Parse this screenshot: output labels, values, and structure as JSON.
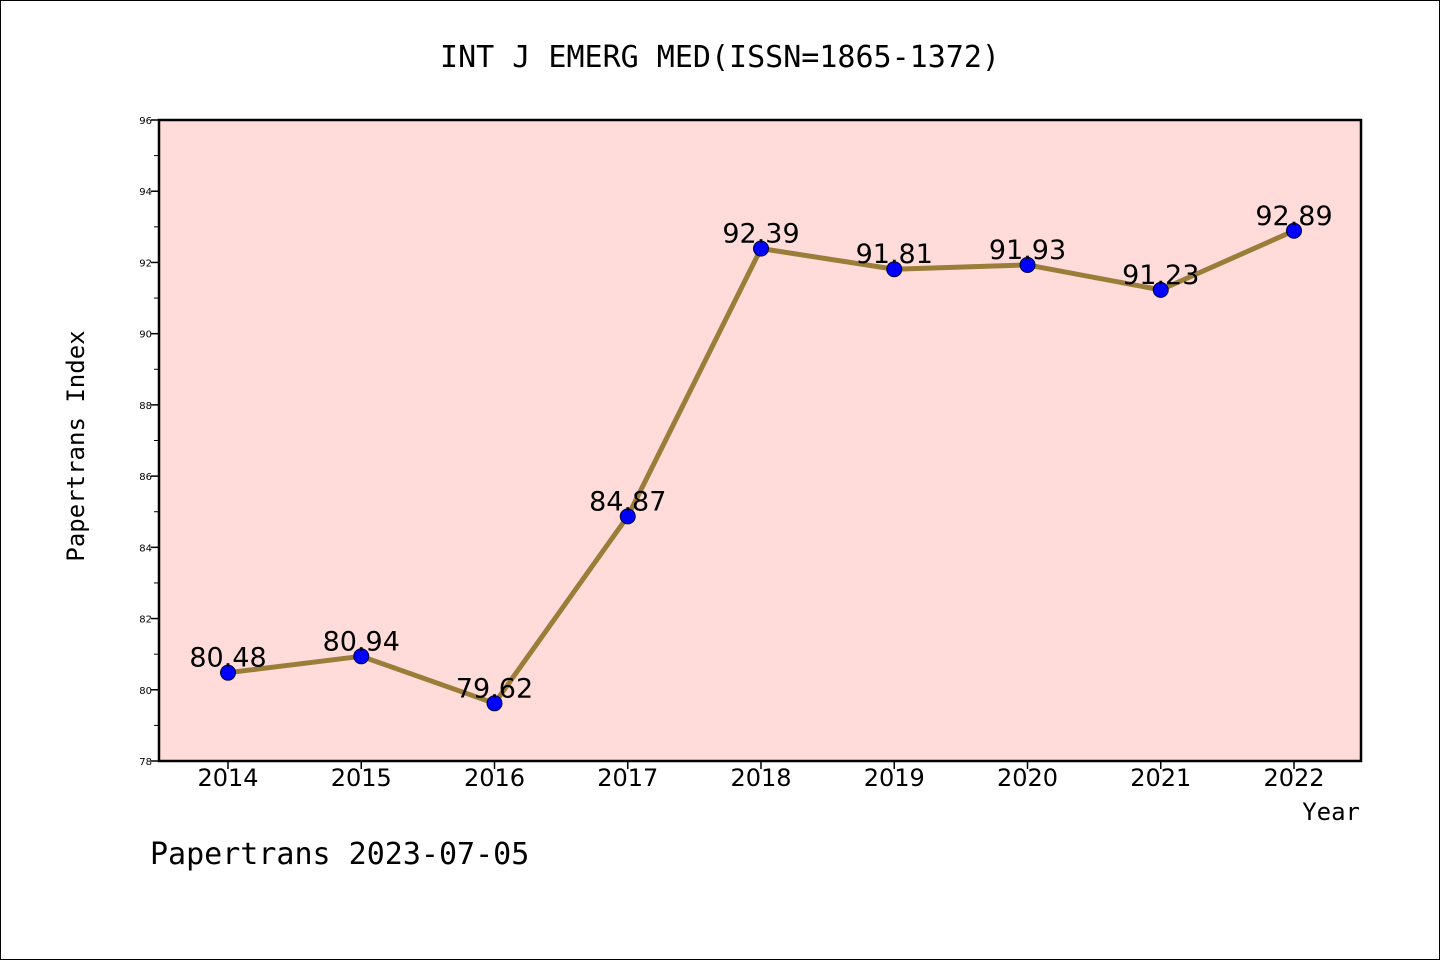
{
  "chart_data": {
    "type": "line",
    "title": "INT J EMERG MED(ISSN=1865-1372)",
    "xlabel": "Year",
    "ylabel": "Papertrans Index",
    "categories": [
      "2014",
      "2015",
      "2016",
      "2017",
      "2018",
      "2019",
      "2020",
      "2021",
      "2022"
    ],
    "values": [
      80.48,
      80.94,
      79.62,
      84.87,
      92.39,
      91.81,
      91.93,
      91.23,
      92.89
    ],
    "data_labels": [
      "80.48",
      "80.94",
      "79.62",
      "84.87",
      "92.39",
      "91.81",
      "91.93",
      "91.23",
      "92.89"
    ],
    "ylim": [
      78,
      96
    ],
    "yticks": [
      "78",
      "80",
      "82",
      "84",
      "86",
      "88",
      "90",
      "92",
      "94",
      "96"
    ],
    "grid": false,
    "legend": "none",
    "colors": {
      "plot_background": "#ffdcd9",
      "line": "#9b7d3a",
      "marker": "#0000ff"
    }
  },
  "footer": {
    "text": "Papertrans 2023-07-05"
  }
}
